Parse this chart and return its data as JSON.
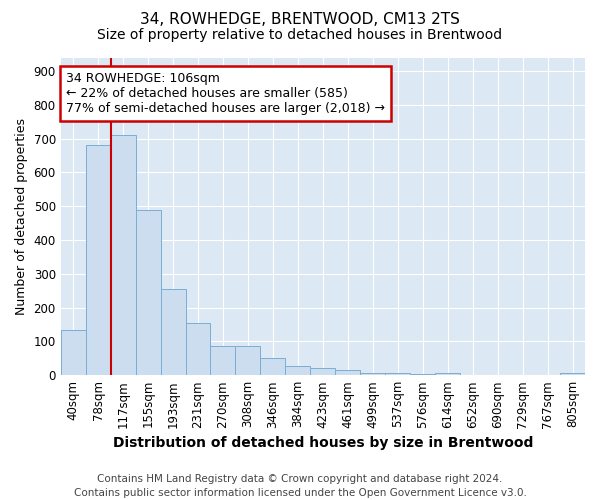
{
  "title": "34, ROWHEDGE, BRENTWOOD, CM13 2TS",
  "subtitle": "Size of property relative to detached houses in Brentwood",
  "xlabel": "Distribution of detached houses by size in Brentwood",
  "ylabel": "Number of detached properties",
  "footer": "Contains HM Land Registry data © Crown copyright and database right 2024.\nContains public sector information licensed under the Open Government Licence v3.0.",
  "bar_labels": [
    "40sqm",
    "78sqm",
    "117sqm",
    "155sqm",
    "193sqm",
    "231sqm",
    "270sqm",
    "308sqm",
    "346sqm",
    "384sqm",
    "423sqm",
    "461sqm",
    "499sqm",
    "537sqm",
    "576sqm",
    "614sqm",
    "652sqm",
    "690sqm",
    "729sqm",
    "767sqm",
    "805sqm"
  ],
  "bar_values": [
    135,
    680,
    710,
    490,
    255,
    155,
    85,
    85,
    50,
    28,
    20,
    15,
    7,
    5,
    3,
    5,
    2,
    2,
    1,
    2,
    5
  ],
  "bar_color": "#ccddf0",
  "bar_edge_color": "#7aaed4",
  "bar_edge_width": 0.7,
  "figure_background": "#ffffff",
  "plot_background": "#dce9f5",
  "grid_color": "#ffffff",
  "vline_color": "#cc0000",
  "vline_x": 2.0,
  "annotation_text": "34 ROWHEDGE: 106sqm\n← 22% of detached houses are smaller (585)\n77% of semi-detached houses are larger (2,018) →",
  "annotation_box_facecolor": "#ffffff",
  "annotation_box_edgecolor": "#cc0000",
  "ylim": [
    0,
    940
  ],
  "yticks": [
    0,
    100,
    200,
    300,
    400,
    500,
    600,
    700,
    800,
    900
  ],
  "title_fontsize": 11,
  "subtitle_fontsize": 10,
  "xlabel_fontsize": 10,
  "ylabel_fontsize": 9,
  "tick_fontsize": 8.5,
  "annotation_fontsize": 9,
  "footer_fontsize": 7.5
}
